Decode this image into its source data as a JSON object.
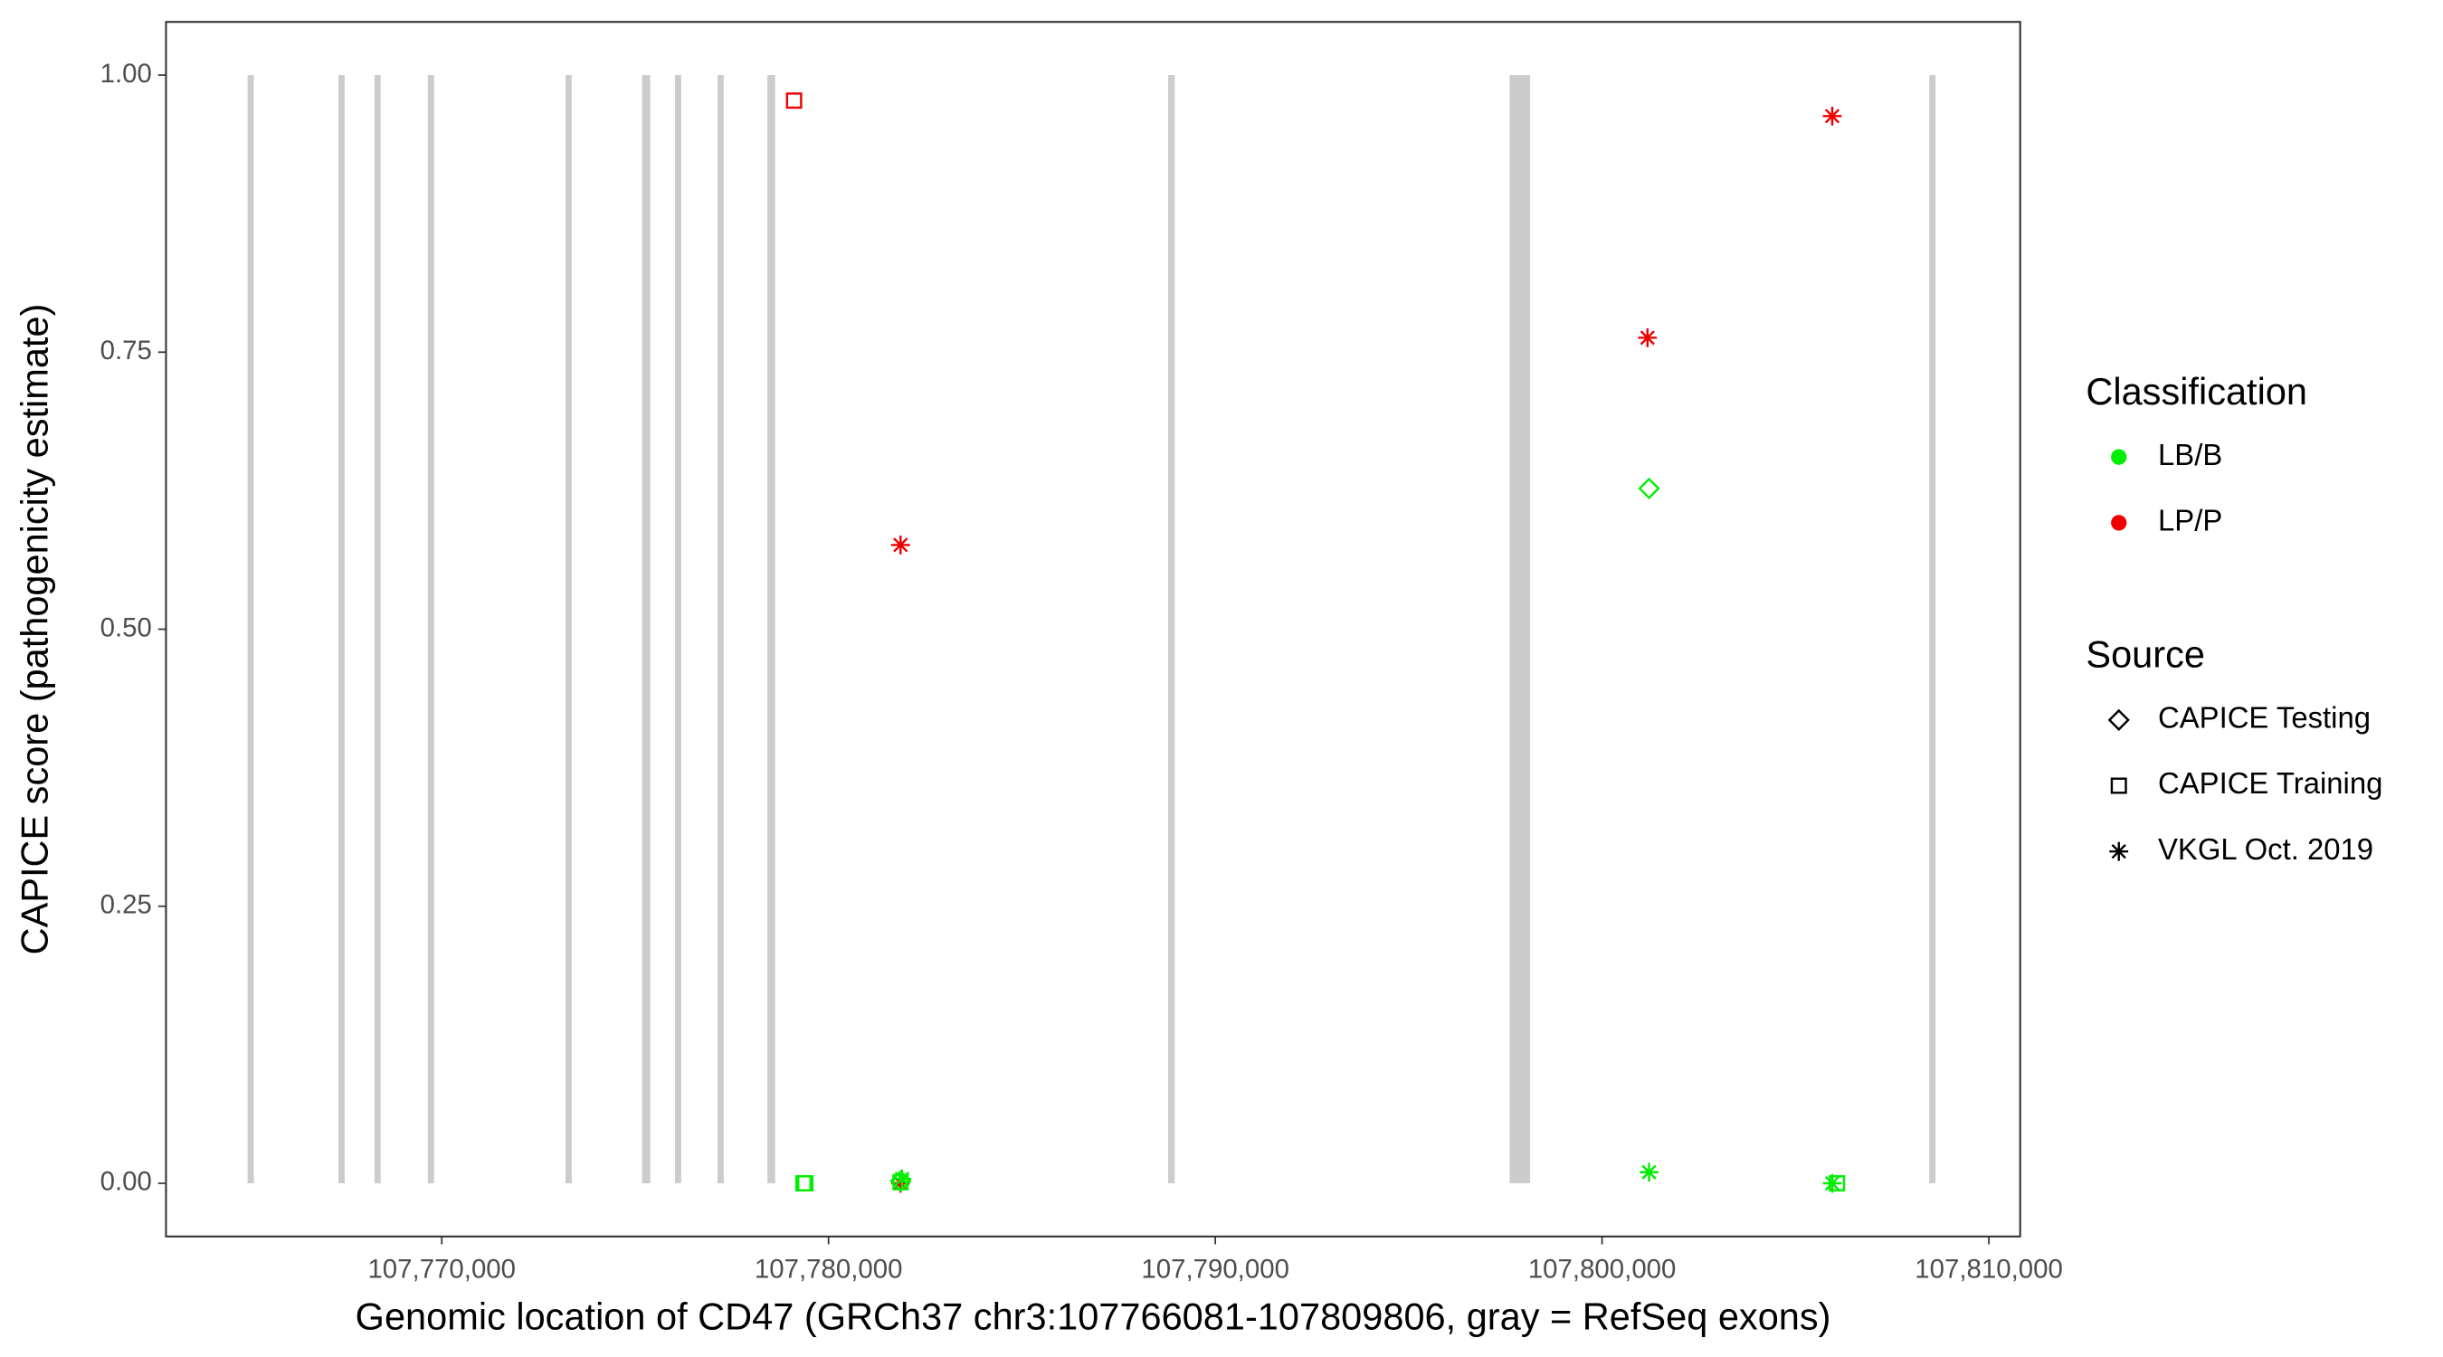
{
  "chart_data": {
    "type": "scatter",
    "x_label": "Genomic location of CD47 (GRCh37 chr3:107766081-107809806, gray = RefSeq exons)",
    "y_label": "CAPICE score (pathogenicity estimate)",
    "xlim": [
      107762870,
      107810810
    ],
    "ylim": [
      -0.048,
      1.048
    ],
    "xticks": [
      {
        "value": 107770000,
        "label": "107,770,000"
      },
      {
        "value": 107780000,
        "label": "107,780,000"
      },
      {
        "value": 107790000,
        "label": "107,790,000"
      },
      {
        "value": 107800000,
        "label": "107,800,000"
      },
      {
        "value": 107810000,
        "label": "107,810,000"
      }
    ],
    "yticks": [
      {
        "value": 0,
        "label": "0.00"
      },
      {
        "value": 0.25,
        "label": "0.25"
      },
      {
        "value": 0.5,
        "label": "0.50"
      },
      {
        "value": 0.75,
        "label": "0.75"
      },
      {
        "value": 1,
        "label": "1.00"
      }
    ],
    "exon_color": "#cccccc",
    "exons": [
      [
        107765020,
        107765100
      ],
      [
        107767370,
        107767450
      ],
      [
        107768300,
        107768380
      ],
      [
        107769680,
        107769760
      ],
      [
        107773240,
        107773320
      ],
      [
        107775220,
        107775350
      ],
      [
        107776070,
        107776150
      ],
      [
        107777170,
        107777250
      ],
      [
        107778460,
        107778580
      ],
      [
        107788820,
        107788910
      ],
      [
        107797650,
        107798100
      ],
      [
        107808500,
        107808580
      ]
    ],
    "classification_legend": {
      "title": "Classification",
      "items": [
        {
          "name": "LB/B",
          "color": "#00ee00"
        },
        {
          "name": "LP/P",
          "color": "#ee0000"
        }
      ]
    },
    "source_legend": {
      "title": "Source",
      "items": [
        "CAPICE Testing",
        "CAPICE Training",
        "VKGL Oct. 2019"
      ]
    },
    "series": [
      {
        "classification": "LP/P",
        "source": "CAPICE Training",
        "x": [
          107779109
        ],
        "y": [
          0.977
        ]
      },
      {
        "classification": "LP/P",
        "source": "VKGL Oct. 2019",
        "x": [
          107781862,
          107801174,
          107805951,
          107781862
        ],
        "y": [
          0.576,
          0.763,
          0.963,
          0.0
        ]
      },
      {
        "classification": "LB/B",
        "source": "CAPICE Testing",
        "x": [
          107801215,
          107781862
        ],
        "y": [
          0.627,
          0.002
        ]
      },
      {
        "classification": "LB/B",
        "source": "CAPICE Training",
        "x": [
          107779352,
          107779400,
          107781862,
          107806073
        ],
        "y": [
          0.0,
          0.0,
          0.001,
          0.0
        ]
      },
      {
        "classification": "LB/B",
        "source": "VKGL Oct. 2019",
        "x": [
          107781900,
          107801215,
          107805951
        ],
        "y": [
          0.004,
          0.01,
          0.0
        ]
      }
    ]
  }
}
